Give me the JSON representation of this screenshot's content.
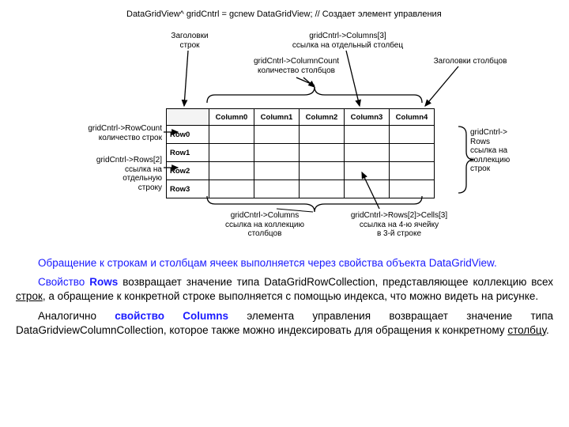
{
  "diagram": {
    "code": "DataGridView^ gridCntrl = gcnew DataGridView; // Создает элемент управления",
    "labels": {
      "rowHeaders": "Заголовки\nстрок",
      "colRef": "gridCntrl->Columns[3]\nссылка на отдельный столбец",
      "colCount": "gridCntrl->ColumnCount\nколичество столбцов",
      "colHeaders": "Заголовки столбцов",
      "rowCount": "gridCntrl->RowCount\nколичество строк",
      "rowRef": "gridCntrl->Rows[2]\nссылка на\nотдельную\nстроку",
      "rowsColl": "gridCntrl->\nRows\nссылка на\nколлекцию\nстрок",
      "colsColl": "gridCntrl->Columns\nссылка на коллекцию\nстолбцов",
      "cellRef": "gridCntrl->Rows[2]>Cells[3]\nссылка на 4-ю ячейку\nв 3-й строке"
    },
    "columns": [
      "Column0",
      "Column1",
      "Column2",
      "Column3",
      "Column4"
    ],
    "rows": [
      "Row0",
      "Row1",
      "Row2",
      "Row3"
    ],
    "style": {
      "stroke": "#000",
      "strokeWidth": 1.5,
      "font": "Arial",
      "fontSizeSmall": 10,
      "fontSizeTable": 9.5,
      "background": "#ffffff"
    }
  },
  "body": {
    "p1a": "Обращение к строкам и столбцам ячеек выполняется через свойства объекта ",
    "p1b": "DataGridView.",
    "p2a": "Свойство ",
    "p2b": "Rows",
    "p2c": " возвращает значение типа DataGridRowCollection, представляющее коллекцию всех ",
    "p2d": "строк",
    "p2e": ", а обращение к конкретной строке выполняется с помощью индекса, что можно видеть на рисунке.",
    "p3a": "Аналогично ",
    "p3b": "свойство Columns",
    "p3c": " элемента управления возвращает значение типа DataGridviewColumnCollection, которое также можно индексировать для обращения к конкретному ",
    "p3d": "столбцу",
    "p3e": "."
  }
}
